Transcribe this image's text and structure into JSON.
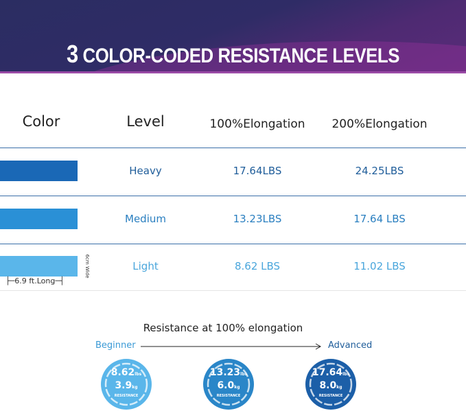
{
  "header": {
    "title_number": "3",
    "title_text": "COLOR-CODED RESISTANCE LEVELS"
  },
  "table": {
    "columns": [
      "Color",
      "Level",
      "100%Elongation",
      "200%Elongation"
    ],
    "rows": [
      {
        "level": "Heavy",
        "e100": "17.64LBS",
        "e200": "24.25LBS",
        "color": "#1a68b6",
        "text_color": "#1f5d9a"
      },
      {
        "level": "Medium",
        "e100": "13.23LBS",
        "e200": "17.64 LBS",
        "color": "#2a90d6",
        "text_color": "#2a7fc0"
      },
      {
        "level": "Light",
        "e100": "8.62 LBS",
        "e200": "11.02 LBS",
        "color": "#5ab6ea",
        "text_color": "#4aa6dc"
      }
    ],
    "length_label": "6.9 ft.Long",
    "width_label": "6cm Wide"
  },
  "resistance": {
    "title": "Resistance at 100% elongation",
    "start": "Beginner",
    "end": "Advanced",
    "circles": [
      {
        "lbs": "8.62",
        "lbs_unit": "lbs",
        "kg": "3.9",
        "kg_unit": "kg",
        "label": "RESISTANCE",
        "color": "#5ab6ea"
      },
      {
        "lbs": "13.23",
        "lbs_unit": "lbs",
        "kg": "6.0",
        "kg_unit": "kg",
        "label": "RESISTANCE",
        "color": "#2a86c8"
      },
      {
        "lbs": "17.64",
        "lbs_unit": "lbs",
        "kg": "8.0",
        "kg_unit": "kg",
        "label": "RESISTANCE",
        "color": "#1c5fa8"
      }
    ]
  }
}
